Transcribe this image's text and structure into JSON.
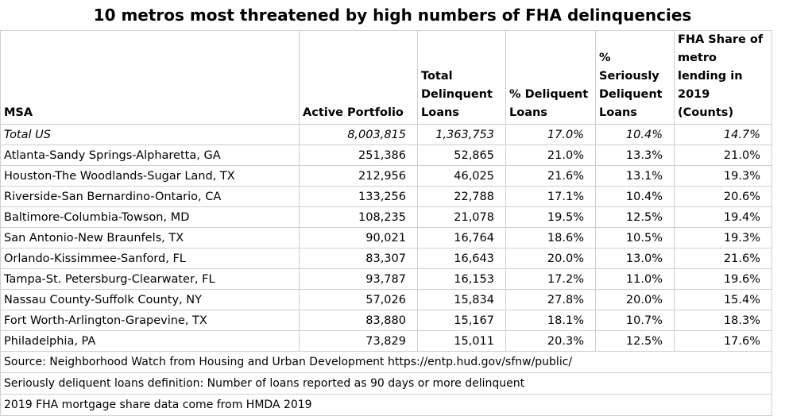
{
  "title": "10 metros most threatened by high numbers of FHA delinquencies",
  "headers": [
    "MSA",
    "Active Portfolio",
    "Total Delinquent Loans",
    "% Deliquent Loans",
    "% Seriously Deliquent Loans",
    "FHA Share of metro lending in 2019 (Counts)"
  ],
  "total": [
    "Total US",
    "8,003,815",
    "1,363,753",
    "17.0%",
    "10.4%",
    "14.7%"
  ],
  "rows": [
    [
      "Atlanta-Sandy Springs-Alpharetta, GA",
      "251,386",
      "52,865",
      "21.0%",
      "13.3%",
      "21.0%"
    ],
    [
      "Houston-The Woodlands-Sugar Land, TX",
      "212,956",
      "46,025",
      "21.6%",
      "13.1%",
      "19.3%"
    ],
    [
      "Riverside-San Bernardino-Ontario, CA",
      "133,256",
      "22,788",
      "17.1%",
      "10.4%",
      "20.6%"
    ],
    [
      "Baltimore-Columbia-Towson, MD",
      "108,235",
      "21,078",
      "19.5%",
      "12.5%",
      "19.4%"
    ],
    [
      "San Antonio-New Braunfels, TX",
      "90,021",
      "16,764",
      "18.6%",
      "10.5%",
      "19.3%"
    ],
    [
      "Orlando-Kissimmee-Sanford, FL",
      "83,307",
      "16,643",
      "20.0%",
      "13.0%",
      "21.6%"
    ],
    [
      "Tampa-St. Petersburg-Clearwater, FL",
      "93,787",
      "16,153",
      "17.2%",
      "11.0%",
      "19.6%"
    ],
    [
      "Nassau County-Suffolk County, NY",
      "57,026",
      "15,834",
      "27.8%",
      "20.0%",
      "15.4%"
    ],
    [
      "Fort Worth-Arlington-Grapevine, TX",
      "83,880",
      "15,167",
      "18.1%",
      "10.7%",
      "18.3%"
    ],
    [
      "Philadelphia, PA",
      "73,829",
      "15,011",
      "20.3%",
      "12.5%",
      "17.6%"
    ]
  ],
  "notes": [
    "Source: Neighborhood Watch from Housing and Urban Development https://entp.hud.gov/sfnw/public/",
    "Seriously deliquent loans definition: Number of loans reported as 90 days or more delinquent",
    "2019 FHA mortgage share data come from HMDA 2019"
  ]
}
